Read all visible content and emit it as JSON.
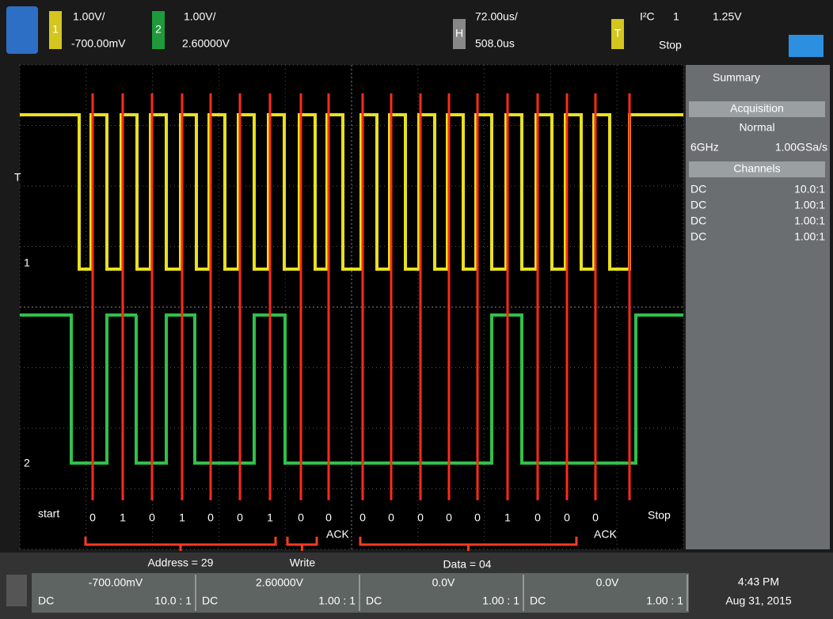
{
  "top_bar": {
    "ch1": {
      "label": "1",
      "scale": "1.00V/",
      "offset": "-700.00mV"
    },
    "ch2": {
      "label": "2",
      "scale": "1.00V/",
      "offset": "2.60000V"
    },
    "horizontal": {
      "label": "H",
      "scale": "72.00us/",
      "delay": "508.0us"
    },
    "trigger": {
      "label": "T",
      "mode": "I²C",
      "source": "1",
      "level": "1.25V",
      "state": "Stop"
    }
  },
  "screen_markers": {
    "trigger": "T",
    "ch1": "1",
    "ch2": "2"
  },
  "annotations": {
    "start": "start",
    "stop": "Stop",
    "bits": [
      "0",
      "1",
      "0",
      "1",
      "0",
      "0",
      "1",
      "0",
      "0",
      "0",
      "0",
      "0",
      "0",
      "0",
      "1",
      "0",
      "0",
      "0"
    ],
    "ack1": "ACK",
    "ack2": "ACK",
    "address": "Address = 29",
    "write": "Write",
    "data": "Data = 04"
  },
  "side_panel": {
    "tab": "Summary",
    "acquisition_header": "Acquisition",
    "mode": "Normal",
    "bandwidth": "6GHz",
    "sample_rate": "1.00GSa/s",
    "channels_header": "Channels",
    "channels": [
      {
        "coupling": "DC",
        "probe": "10.0:1"
      },
      {
        "coupling": "DC",
        "probe": "1.00:1"
      },
      {
        "coupling": "DC",
        "probe": "1.00:1"
      },
      {
        "coupling": "DC",
        "probe": "1.00:1"
      }
    ]
  },
  "bottom_bar": {
    "channels": [
      {
        "offset": "-700.00mV",
        "coupling": "DC",
        "probe": "10.0 : 1"
      },
      {
        "offset": "2.60000V",
        "coupling": "DC",
        "probe": "1.00 : 1"
      },
      {
        "offset": "0.0V",
        "coupling": "DC",
        "probe": "1.00 : 1"
      },
      {
        "offset": "0.0V",
        "coupling": "DC",
        "probe": "1.00 : 1"
      }
    ],
    "time": "4:43 PM",
    "date": "Aug 31, 2015"
  }
}
